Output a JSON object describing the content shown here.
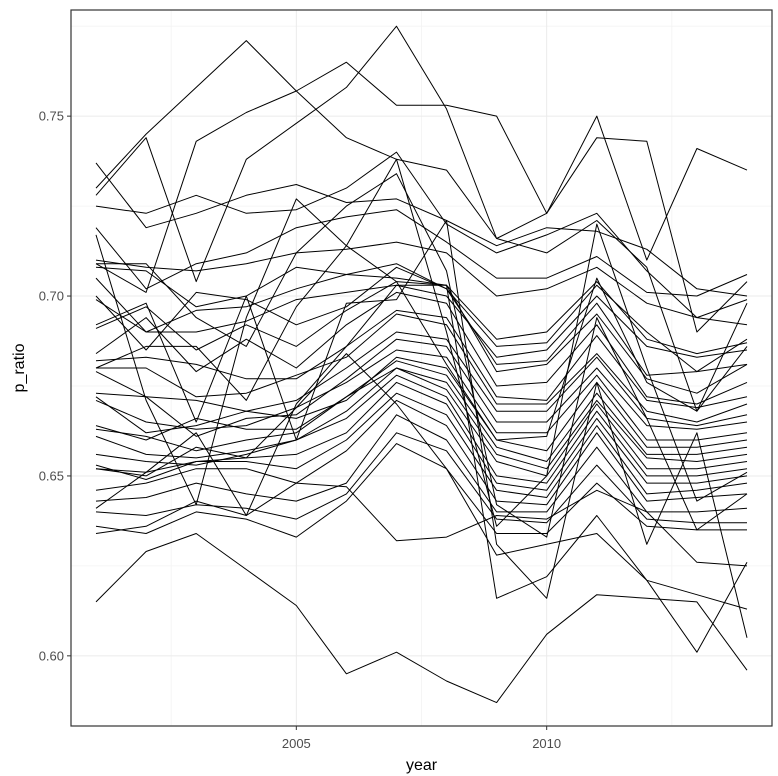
{
  "chart_data": {
    "type": "line",
    "title": "",
    "xlabel": "year",
    "ylabel": "p_ratio",
    "xlim": [
      2000.5,
      2014.5
    ],
    "ylim": [
      0.5805,
      0.7795
    ],
    "x_ticks": [
      2005,
      2010
    ],
    "x_tick_labels": [
      "2005",
      "2010"
    ],
    "y_ticks": [
      0.6,
      0.65,
      0.7,
      0.75
    ],
    "y_tick_labels": [
      "0.60",
      "0.65",
      "0.70",
      "0.75"
    ],
    "grid": true,
    "legend": "none",
    "line_color": "#000000",
    "x": [
      2001,
      2002,
      2003,
      2004,
      2005,
      2006,
      2007,
      2008,
      2009,
      2010,
      2011,
      2012,
      2013,
      2014
    ],
    "series": [
      {
        "values": [
          0.615,
          0.629,
          0.634,
          0.624,
          0.614,
          0.595,
          0.601,
          0.593,
          0.587,
          0.606,
          0.617,
          0.616,
          0.615,
          0.596
        ]
      },
      {
        "values": [
          0.728,
          0.744,
          0.704,
          0.738,
          0.748,
          0.758,
          0.775,
          0.752,
          0.716,
          0.723,
          0.744,
          0.743,
          0.69,
          0.704
        ]
      },
      {
        "values": [
          0.73,
          0.745,
          0.758,
          0.771,
          0.757,
          0.765,
          0.753,
          0.753,
          0.75,
          0.723,
          0.75,
          0.71,
          0.741,
          0.735
        ]
      },
      {
        "values": [
          0.709,
          0.701,
          0.743,
          0.751,
          0.757,
          0.744,
          0.738,
          0.735,
          0.716,
          0.712,
          0.721,
          0.708,
          0.668,
          0.698
        ]
      },
      {
        "values": [
          0.737,
          0.719,
          0.723,
          0.728,
          0.731,
          0.726,
          0.727,
          0.721,
          0.714,
          0.719,
          0.718,
          0.713,
          0.702,
          0.7
        ]
      },
      {
        "values": [
          0.725,
          0.723,
          0.728,
          0.723,
          0.724,
          0.73,
          0.74,
          0.72,
          0.712,
          0.717,
          0.723,
          0.707,
          0.694,
          0.692
        ]
      },
      {
        "values": [
          0.719,
          0.702,
          0.709,
          0.712,
          0.719,
          0.722,
          0.724,
          0.715,
          0.705,
          0.705,
          0.711,
          0.701,
          0.7,
          0.706
        ]
      },
      {
        "values": [
          0.71,
          0.708,
          0.707,
          0.709,
          0.712,
          0.713,
          0.715,
          0.712,
          0.7,
          0.702,
          0.708,
          0.698,
          0.694,
          0.699
        ]
      },
      {
        "values": [
          0.708,
          0.707,
          0.697,
          0.7,
          0.708,
          0.706,
          0.705,
          0.703,
          0.688,
          0.69,
          0.704,
          0.688,
          0.684,
          0.687
        ]
      },
      {
        "values": [
          0.705,
          0.69,
          0.696,
          0.697,
          0.702,
          0.706,
          0.709,
          0.702,
          0.686,
          0.687,
          0.703,
          0.69,
          0.679,
          0.681
        ]
      },
      {
        "values": [
          0.699,
          0.69,
          0.69,
          0.693,
          0.699,
          0.701,
          0.703,
          0.7,
          0.683,
          0.685,
          0.7,
          0.686,
          0.683,
          0.685
        ]
      },
      {
        "values": [
          0.7,
          0.685,
          0.701,
          0.699,
          0.692,
          0.697,
          0.708,
          0.702,
          0.681,
          0.682,
          0.698,
          0.678,
          0.679,
          0.688
        ]
      },
      {
        "values": [
          0.691,
          0.697,
          0.685,
          0.692,
          0.686,
          0.696,
          0.704,
          0.703,
          0.679,
          0.681,
          0.695,
          0.677,
          0.673,
          0.681
        ]
      },
      {
        "values": [
          0.684,
          0.694,
          0.679,
          0.688,
          0.68,
          0.692,
          0.701,
          0.698,
          0.675,
          0.676,
          0.692,
          0.672,
          0.67,
          0.676
        ]
      },
      {
        "values": [
          0.682,
          0.683,
          0.681,
          0.677,
          0.677,
          0.686,
          0.696,
          0.694,
          0.672,
          0.671,
          0.689,
          0.671,
          0.669,
          0.672
        ]
      },
      {
        "values": [
          0.68,
          0.68,
          0.672,
          0.673,
          0.678,
          0.683,
          0.695,
          0.692,
          0.67,
          0.67,
          0.684,
          0.668,
          0.665,
          0.67
        ]
      },
      {
        "values": [
          0.679,
          0.672,
          0.671,
          0.668,
          0.671,
          0.68,
          0.69,
          0.688,
          0.668,
          0.668,
          0.683,
          0.666,
          0.664,
          0.667
        ]
      },
      {
        "values": [
          0.673,
          0.672,
          0.661,
          0.666,
          0.667,
          0.677,
          0.688,
          0.686,
          0.665,
          0.665,
          0.68,
          0.664,
          0.663,
          0.665
        ]
      },
      {
        "values": [
          0.671,
          0.665,
          0.663,
          0.664,
          0.669,
          0.676,
          0.685,
          0.683,
          0.662,
          0.662,
          0.678,
          0.66,
          0.66,
          0.662
        ]
      },
      {
        "values": [
          0.672,
          0.662,
          0.664,
          0.668,
          0.666,
          0.671,
          0.683,
          0.68,
          0.66,
          0.657,
          0.676,
          0.658,
          0.658,
          0.66
        ]
      },
      {
        "values": [
          0.664,
          0.66,
          0.666,
          0.663,
          0.663,
          0.672,
          0.682,
          0.678,
          0.658,
          0.654,
          0.673,
          0.656,
          0.656,
          0.658
        ]
      },
      {
        "values": [
          0.663,
          0.661,
          0.657,
          0.66,
          0.662,
          0.672,
          0.68,
          0.676,
          0.656,
          0.652,
          0.671,
          0.655,
          0.654,
          0.656
        ]
      },
      {
        "values": [
          0.661,
          0.656,
          0.655,
          0.657,
          0.66,
          0.668,
          0.68,
          0.674,
          0.654,
          0.65,
          0.67,
          0.652,
          0.652,
          0.654
        ]
      },
      {
        "values": [
          0.656,
          0.654,
          0.653,
          0.656,
          0.66,
          0.666,
          0.678,
          0.672,
          0.65,
          0.648,
          0.668,
          0.65,
          0.65,
          0.652
        ]
      },
      {
        "values": [
          0.652,
          0.65,
          0.658,
          0.655,
          0.656,
          0.662,
          0.676,
          0.67,
          0.648,
          0.646,
          0.666,
          0.648,
          0.648,
          0.65
        ]
      },
      {
        "values": [
          0.653,
          0.649,
          0.654,
          0.654,
          0.652,
          0.66,
          0.673,
          0.667,
          0.646,
          0.644,
          0.664,
          0.645,
          0.646,
          0.648
        ]
      },
      {
        "values": [
          0.646,
          0.648,
          0.652,
          0.652,
          0.648,
          0.657,
          0.671,
          0.664,
          0.643,
          0.642,
          0.662,
          0.643,
          0.644,
          0.645
        ]
      },
      {
        "values": [
          0.643,
          0.644,
          0.648,
          0.645,
          0.643,
          0.648,
          0.667,
          0.66,
          0.64,
          0.64,
          0.658,
          0.64,
          0.64,
          0.641
        ]
      },
      {
        "values": [
          0.64,
          0.639,
          0.642,
          0.641,
          0.638,
          0.645,
          0.662,
          0.657,
          0.638,
          0.637,
          0.653,
          0.638,
          0.637,
          0.637
        ]
      },
      {
        "values": [
          0.636,
          0.634,
          0.64,
          0.638,
          0.633,
          0.643,
          0.659,
          0.652,
          0.634,
          0.634,
          0.648,
          0.636,
          0.635,
          0.635
        ]
      },
      {
        "values": [
          0.634,
          0.636,
          0.643,
          0.639,
          0.648,
          0.647,
          0.632,
          0.633,
          0.639,
          0.638,
          0.646,
          0.64,
          0.626,
          0.625
        ]
      },
      {
        "values": [
          0.652,
          0.651,
          0.654,
          0.655,
          0.669,
          0.684,
          0.67,
          0.652,
          0.628,
          0.631,
          0.634,
          0.621,
          0.617,
          0.613
        ]
      },
      {
        "values": [
          0.641,
          0.651,
          0.662,
          0.639,
          0.67,
          0.686,
          0.703,
          0.703,
          0.616,
          0.622,
          0.639,
          0.621,
          0.601,
          0.626
        ]
      },
      {
        "values": [
          0.692,
          0.698,
          0.665,
          0.7,
          0.66,
          0.698,
          0.699,
          0.721,
          0.631,
          0.616,
          0.676,
          0.631,
          0.662,
          0.605
        ]
      },
      {
        "values": [
          0.709,
          0.709,
          0.694,
          0.686,
          0.712,
          0.725,
          0.734,
          0.707,
          0.642,
          0.633,
          0.694,
          0.666,
          0.635,
          0.645
        ]
      },
      {
        "values": [
          0.717,
          0.671,
          0.642,
          0.694,
          0.727,
          0.714,
          0.738,
          0.69,
          0.636,
          0.65,
          0.72,
          0.68,
          0.643,
          0.651
        ]
      },
      {
        "values": [
          0.68,
          0.686,
          0.686,
          0.671,
          0.697,
          0.714,
          0.704,
          0.681,
          0.66,
          0.661,
          0.705,
          0.676,
          0.668,
          0.686
        ]
      }
    ]
  }
}
